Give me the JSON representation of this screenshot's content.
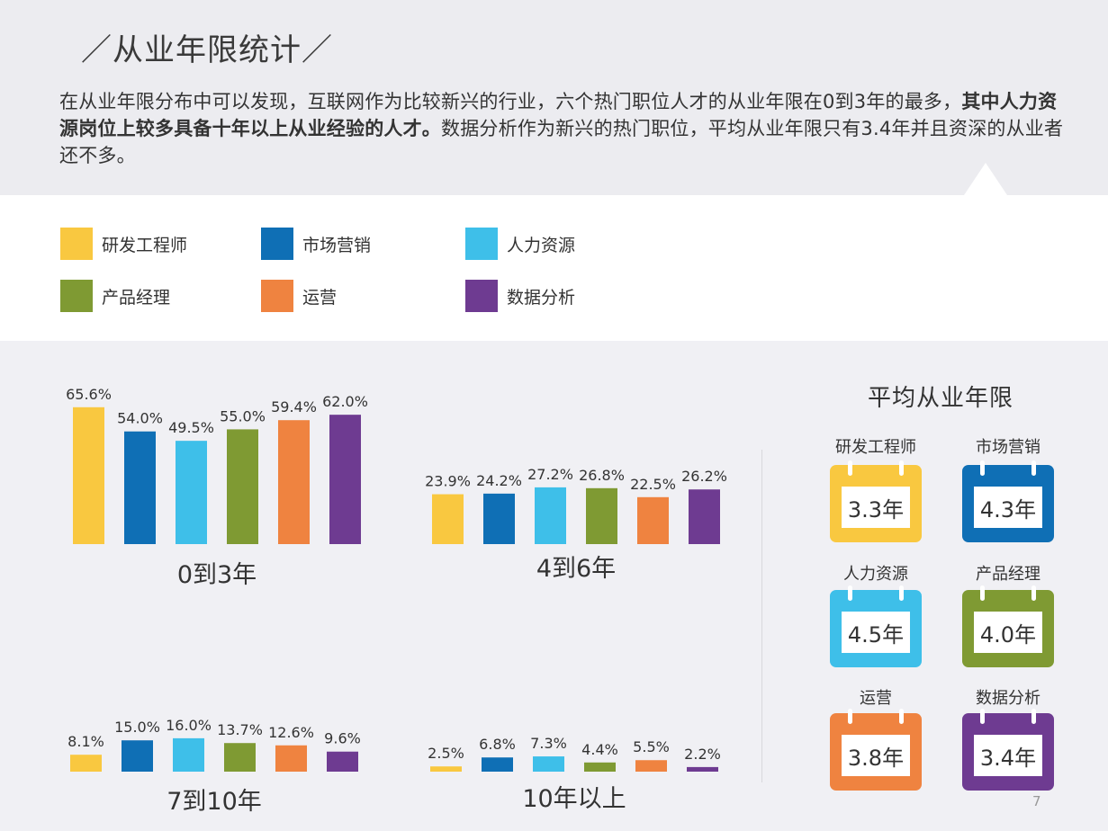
{
  "header": {
    "title": "／从业年限统计／",
    "intro_plain_1": "在从业年限分布中可以发现，互联网作为比较新兴的行业，六个热门职位人才的从业年限在0到3年的最多，",
    "intro_bold": "其中人力资源岗位上较多具备十年以上从业经验的人才。",
    "intro_plain_2": "数据分析作为新兴的热门职位，平均从业年限只有3.4年并且资深的从业者还不多。"
  },
  "legend": [
    {
      "label": "研发工程师",
      "color": "#f9c840"
    },
    {
      "label": "市场营销",
      "color": "#0f6fb5"
    },
    {
      "label": "人力资源",
      "color": "#3ebfe9"
    },
    {
      "label": "产品经理",
      "color": "#7f9a33"
    },
    {
      "label": "运营",
      "color": "#ef8340"
    },
    {
      "label": "数据分析",
      "color": "#6e3b91"
    }
  ],
  "chart_data": {
    "type": "bar",
    "categories": [
      "研发工程师",
      "市场营销",
      "人力资源",
      "产品经理",
      "运营",
      "数据分析"
    ],
    "groups": [
      {
        "name": "0到3年",
        "values": [
          65.6,
          54.0,
          49.5,
          55.0,
          59.4,
          62.0
        ],
        "labels": [
          "65.6%",
          "54.0%",
          "49.5%",
          "55.0%",
          "59.4%",
          "62.0%"
        ]
      },
      {
        "name": "4到6年",
        "values": [
          23.9,
          24.2,
          27.2,
          26.8,
          22.5,
          26.2
        ],
        "labels": [
          "23.9%",
          "24.2%",
          "27.2%",
          "26.8%",
          "22.5%",
          "26.2%"
        ]
      },
      {
        "name": "7到10年",
        "values": [
          8.1,
          15.0,
          16.0,
          13.7,
          12.6,
          9.6
        ],
        "labels": [
          "8.1%",
          "15.0%",
          "16.0%",
          "13.7%",
          "12.6%",
          "9.6%"
        ]
      },
      {
        "name": "10年以上",
        "values": [
          2.5,
          6.8,
          7.3,
          4.4,
          5.5,
          2.2
        ],
        "labels": [
          "2.5%",
          "6.8%",
          "7.3%",
          "4.4%",
          "5.5%",
          "2.2%"
        ]
      }
    ],
    "colors": [
      "#f9c840",
      "#0f6fb5",
      "#3ebfe9",
      "#7f9a33",
      "#ef8340",
      "#6e3b91"
    ],
    "legend": "top",
    "grid": false
  },
  "averages": {
    "title": "平均从业年限",
    "items": [
      {
        "name": "研发工程师",
        "value": "3.3年",
        "color": "#f9c840"
      },
      {
        "name": "市场营销",
        "value": "4.3年",
        "color": "#0f6fb5"
      },
      {
        "name": "人力资源",
        "value": "4.5年",
        "color": "#3ebfe9"
      },
      {
        "name": "产品经理",
        "value": "4.0年",
        "color": "#7f9a33"
      },
      {
        "name": "运营",
        "value": "3.8年",
        "color": "#ef8340"
      },
      {
        "name": "数据分析",
        "value": "3.4年",
        "color": "#6e3b91"
      }
    ]
  },
  "page_number": "7"
}
